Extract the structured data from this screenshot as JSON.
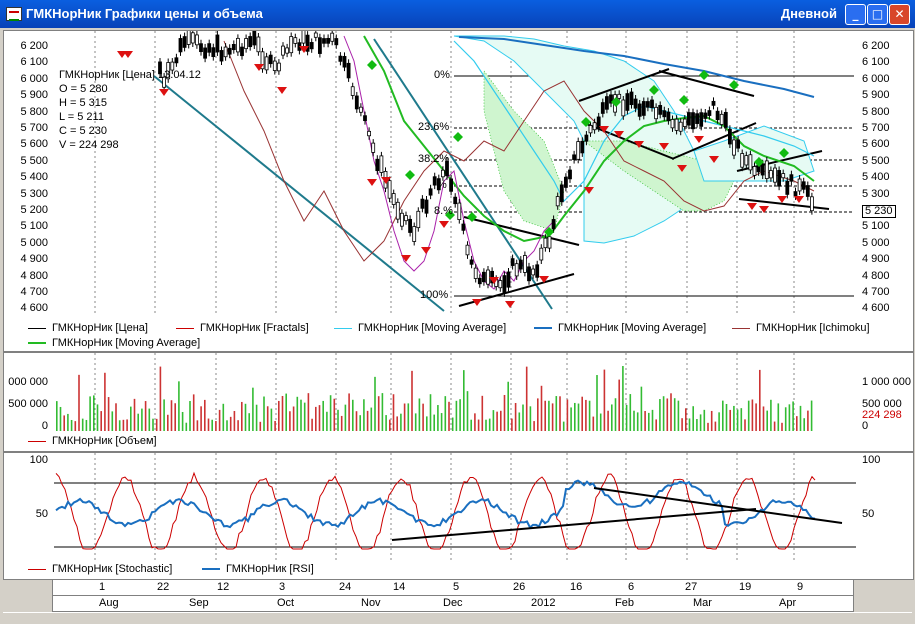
{
  "window": {
    "title": "ГМКНорНик Графики цены и объема",
    "period": "Дневной",
    "buttons": {
      "minimize": "_",
      "maximize": "□",
      "close": "✕"
    }
  },
  "price_panel": {
    "info": {
      "header": "ГМКНорНик [Цена] 13.04.12",
      "open": "O = 5 280",
      "high": "H = 5 315",
      "low": "L = 5 211",
      "close": "C = 5 230",
      "volume": "V = 224 298"
    },
    "left_ticks": [
      "6 200",
      "6 100",
      "6 000",
      "5 900",
      "5 800",
      "5 700",
      "5 600",
      "5 500",
      "5 400",
      "5 300",
      "5 200",
      "5 100",
      "5 000",
      "4 900",
      "4 800",
      "4 700",
      "4 600"
    ],
    "right_ticks": [
      "6 200",
      "6 100",
      "6 000",
      "5 900",
      "5 800",
      "5 700",
      "5 600",
      "5 500",
      "5 400",
      "5 300",
      "5 230",
      "5 100",
      "5 000",
      "4 900",
      "4 800",
      "4 700",
      "4 600"
    ],
    "fibo_levels": [
      "0%",
      "23.6%",
      "38.2%",
      "%",
      "8.%",
      "100%"
    ],
    "legend": [
      {
        "label": "ГМКНорНик [Цена]",
        "color": "#000000"
      },
      {
        "label": "ГМКНорНик [Fractals]",
        "color": "#cc0000"
      },
      {
        "label": "ГМКНорНик [Moving Average]",
        "color": "#33ccee"
      },
      {
        "label": "ГМКНорНик [Moving Average]",
        "color": "#1a6fc0"
      },
      {
        "label": "ГМКНорНик [Ichimoku]",
        "color": "#993333"
      },
      {
        "label": "ГМКНорНик [Moving Average]",
        "color": "#22bb22"
      }
    ]
  },
  "volume_panel": {
    "left_ticks": [
      "000 000",
      "500 000",
      "0"
    ],
    "right_ticks": [
      "1 000 000",
      "500 000",
      "224 298",
      "0"
    ],
    "legend": [
      {
        "label": "ГМКНорНик [Объем]",
        "color": "#cc0000"
      }
    ]
  },
  "oscillator_panel": {
    "left_ticks": [
      "100",
      "50",
      "0"
    ],
    "right_ticks": [
      "100",
      "50"
    ],
    "legend": [
      {
        "label": "ГМКНорНик [Stochastic]",
        "color": "#cc0000"
      },
      {
        "label": "ГМКНорНик [RSI]",
        "color": "#1a6fc0"
      }
    ]
  },
  "date_axis": {
    "days": [
      "1",
      "22",
      "12",
      "3",
      "24",
      "14",
      "5",
      "26",
      "16",
      "6",
      "27",
      "19",
      "9"
    ],
    "months": [
      "Aug",
      "Sep",
      "Oct",
      "Nov",
      "Dec",
      "2012",
      "Feb",
      "Mar",
      "Apr"
    ]
  },
  "colors": {
    "titlebar": "#0a5fe0",
    "price": "#000000",
    "fractal_down": "#dd1111",
    "fractal_up": "#11bb11",
    "ma_fast": "#33ccee",
    "ma_slow": "#1a6fc0",
    "ma_green": "#22bb22",
    "ichimoku": "#993333",
    "volume_up": "#33bb33",
    "volume_down": "#cc3333",
    "stochastic": "#cc0000",
    "rsi": "#1a6fc0"
  }
}
